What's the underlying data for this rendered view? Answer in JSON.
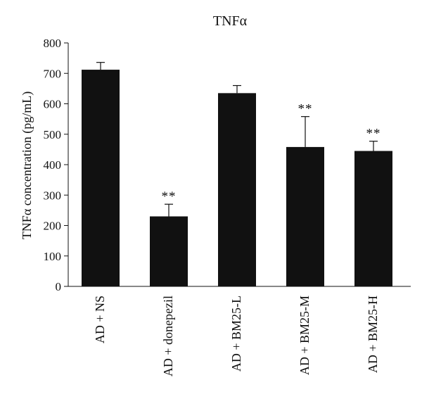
{
  "chart_data": {
    "type": "bar",
    "title": "TNFα",
    "ylabel": "TNFα concentration (pg/mL)",
    "xlabel": "",
    "categories": [
      "AD + NS",
      "AD + donepezil",
      "AD + BM25-L",
      "AD + BM25-M",
      "AD + BM25-H"
    ],
    "values": [
      712,
      230,
      635,
      458,
      445
    ],
    "error": [
      24,
      40,
      25,
      100,
      32
    ],
    "annotations": [
      "",
      "**",
      "",
      "**",
      "**"
    ],
    "ylim": [
      0,
      800
    ],
    "yticks": [
      "0",
      "100",
      "200",
      "300",
      "400",
      "500",
      "600",
      "700",
      "800"
    ],
    "bar_color": "#111111",
    "grid": false
  }
}
